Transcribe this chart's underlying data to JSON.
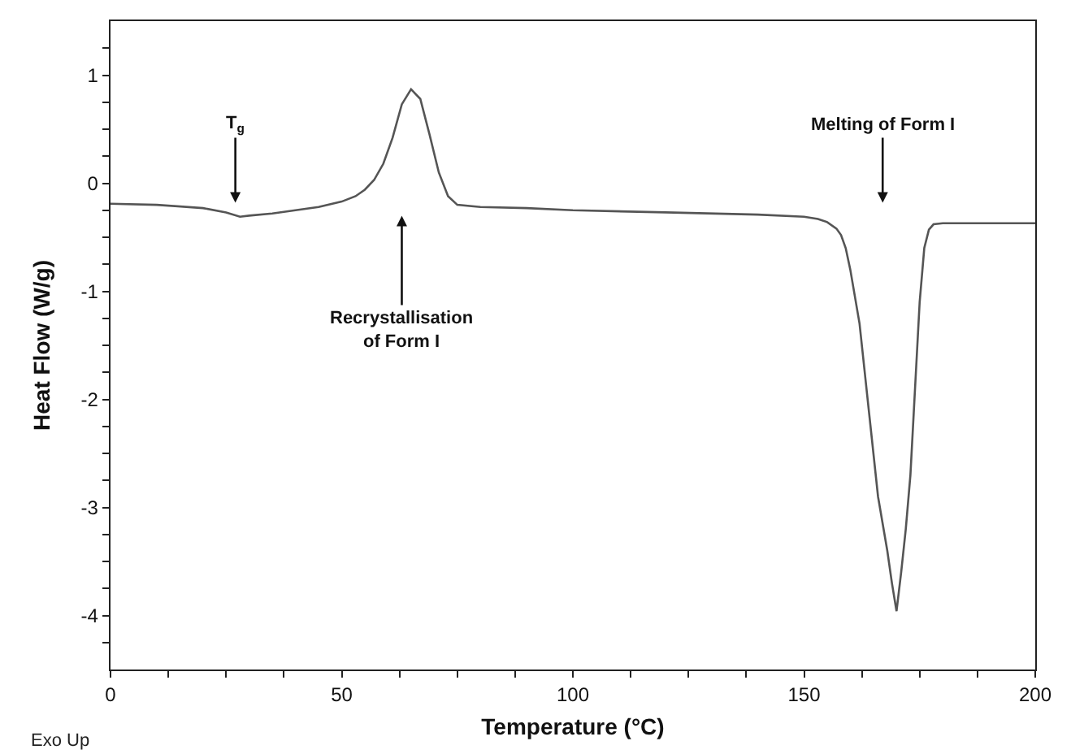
{
  "chart_data": {
    "type": "line",
    "xlabel": "Temperature (°C)",
    "ylabel": "Heat Flow (W/g)",
    "x": [
      0,
      10,
      20,
      25,
      28,
      30,
      35,
      40,
      45,
      50,
      53,
      55,
      57,
      59,
      61,
      63,
      65,
      67,
      69,
      71,
      73,
      75,
      80,
      90,
      100,
      120,
      140,
      150,
      153,
      155,
      157,
      158,
      159,
      160,
      162,
      164,
      166,
      168,
      169,
      170,
      171,
      172,
      173,
      174,
      175,
      176,
      177,
      178,
      180,
      190,
      200
    ],
    "series": [
      {
        "color": "#555555",
        "values": [
          -0.19,
          -0.2,
          -0.23,
          -0.27,
          -0.31,
          -0.3,
          -0.28,
          -0.25,
          -0.22,
          -0.17,
          -0.12,
          -0.06,
          0.03,
          0.18,
          0.42,
          0.73,
          0.87,
          0.78,
          0.45,
          0.1,
          -0.12,
          -0.2,
          -0.22,
          -0.23,
          -0.25,
          -0.27,
          -0.29,
          -0.31,
          -0.33,
          -0.36,
          -0.42,
          -0.48,
          -0.6,
          -0.8,
          -1.3,
          -2.1,
          -2.9,
          -3.4,
          -3.7,
          -3.96,
          -3.6,
          -3.2,
          -2.7,
          -1.9,
          -1.1,
          -0.6,
          -0.43,
          -0.38,
          -0.37,
          -0.37,
          -0.37
        ]
      }
    ],
    "xlim": [
      0,
      200
    ],
    "ylim": [
      -4.5,
      1.5
    ],
    "xticks": [
      0,
      {
        "value": 12.5,
        "label": null
      },
      {
        "value": 25,
        "label": null
      },
      {
        "value": 37.5,
        "label": null
      },
      50,
      {
        "value": 62.5,
        "label": null
      },
      {
        "value": 75,
        "label": null
      },
      {
        "value": 87.5,
        "label": null
      },
      100,
      {
        "value": 112.5,
        "label": null
      },
      {
        "value": 125,
        "label": null
      },
      {
        "value": 137.5,
        "label": null
      },
      150,
      {
        "value": 162.5,
        "label": null
      },
      {
        "value": 175,
        "label": null
      },
      {
        "value": 187.5,
        "label": null
      },
      200
    ],
    "yticks": [
      {
        "value": -4.25,
        "label": null
      },
      -4,
      {
        "value": -3.75,
        "label": null
      },
      {
        "value": -3.5,
        "label": null
      },
      {
        "value": -3.25,
        "label": null
      },
      -3,
      {
        "value": -2.75,
        "label": null
      },
      {
        "value": -2.5,
        "label": null
      },
      {
        "value": -2.25,
        "label": null
      },
      -2,
      {
        "value": -1.75,
        "label": null
      },
      {
        "value": -1.5,
        "label": null
      },
      {
        "value": -1.25,
        "label": null
      },
      -1,
      {
        "value": -0.75,
        "label": null
      },
      {
        "value": -0.5,
        "label": null
      },
      {
        "value": -0.25,
        "label": null
      },
      0,
      {
        "value": 0.25,
        "label": null
      },
      {
        "value": 0.5,
        "label": null
      },
      {
        "value": 0.75,
        "label": null
      },
      1,
      {
        "value": 1.25,
        "label": null
      }
    ],
    "legend": false,
    "marker": "none",
    "line_style": "solid",
    "annotations": [
      "T$_{g}$",
      "Recrystallisation\nof Form I",
      "Melting of Form I",
      "Exo Up"
    ]
  }
}
